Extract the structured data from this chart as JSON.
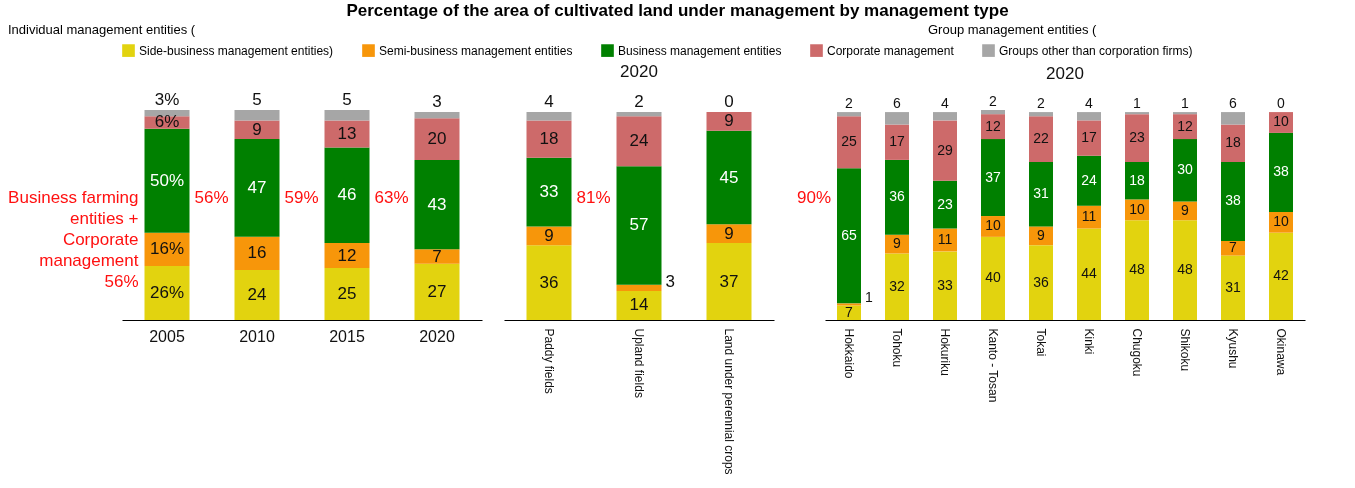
{
  "chart_data": [
    {
      "type": "bar",
      "stacked": true,
      "title": "Percentage of the area of cultivated land under management by management type",
      "legend": "top",
      "categories": [
        "2005",
        "2010",
        "2015",
        "2020"
      ],
      "series": [
        {
          "name": "Side-business management entities)",
          "color": "#e2d30f",
          "values": [
            26,
            24,
            25,
            27
          ],
          "value_labels": [
            "26%",
            "24",
            "25",
            "27"
          ]
        },
        {
          "name": "Semi-business management entities",
          "color": "#f7960a",
          "values": [
            16,
            16,
            12,
            7
          ],
          "value_labels": [
            "16%",
            "16",
            "12",
            "7"
          ]
        },
        {
          "name": "Business management entities",
          "color": "#008000",
          "values": [
            50,
            47,
            46,
            43
          ],
          "value_labels": [
            "50%",
            "47",
            "46",
            "43"
          ]
        },
        {
          "name": "Corporate management",
          "color": "#cd6a6a",
          "values": [
            6,
            9,
            13,
            20
          ],
          "value_labels": [
            "6%",
            "9",
            "13",
            "20"
          ]
        },
        {
          "name": "Groups other than corporation firms)",
          "color": "#a6a6a6",
          "values": [
            3,
            5,
            5,
            3
          ],
          "value_labels": [
            "3%",
            "5",
            "5",
            "3"
          ]
        }
      ],
      "annotations": [
        "Individual management entities (",
        "Group management entities (",
        "Business farming\nentities +\nCorporate\nmanagement\n56%",
        "56%",
        "59%",
        "63%"
      ]
    },
    {
      "type": "bar",
      "stacked": true,
      "title": "2020",
      "categories": [
        "Paddy fields",
        "Upland fields",
        "Land under perennial crops"
      ],
      "series": [
        {
          "name": "Side-business management entities)",
          "color": "#e2d30f",
          "values": [
            36,
            14,
            37
          ],
          "value_labels": [
            "36",
            "14",
            "37"
          ]
        },
        {
          "name": "Semi-business management entities",
          "color": "#f7960a",
          "values": [
            9,
            3,
            9
          ],
          "value_labels": [
            "9",
            "3",
            "9"
          ]
        },
        {
          "name": "Business management entities",
          "color": "#008000",
          "values": [
            33,
            57,
            45
          ],
          "value_labels": [
            "33",
            "57",
            "45"
          ]
        },
        {
          "name": "Corporate management",
          "color": "#cd6a6a",
          "values": [
            18,
            24,
            9
          ],
          "value_labels": [
            "18",
            "24",
            "9"
          ]
        },
        {
          "name": "Groups other than corporation firms)",
          "color": "#a6a6a6",
          "values": [
            4,
            2,
            0
          ],
          "value_labels": [
            "4",
            "2",
            "0"
          ]
        }
      ],
      "annotations": [
        "81%"
      ]
    },
    {
      "type": "bar",
      "stacked": true,
      "title": "2020",
      "categories": [
        "Hokkaido",
        "Tohoku",
        "Hokuriku",
        "Kanto - Tosan",
        "Tokai",
        "Kinki",
        "Chugoku",
        "Shikoku",
        "Kyushu",
        "Okinawa"
      ],
      "series": [
        {
          "name": "Side-business management entities)",
          "color": "#e2d30f",
          "values": [
            7,
            32,
            33,
            40,
            36,
            44,
            48,
            48,
            31,
            42
          ],
          "value_labels": [
            "7",
            "32",
            "33",
            "40",
            "36",
            "44",
            "48",
            "48",
            "31",
            "42"
          ]
        },
        {
          "name": "Semi-business management entities",
          "color": "#f7960a",
          "values": [
            1,
            9,
            11,
            10,
            9,
            11,
            10,
            9,
            7,
            10
          ],
          "value_labels": [
            "1",
            "9",
            "11",
            "10",
            "9",
            "11",
            "10",
            "9",
            "7",
            "10"
          ]
        },
        {
          "name": "Business management entities",
          "color": "#008000",
          "values": [
            65,
            36,
            23,
            37,
            31,
            24,
            18,
            30,
            38,
            38
          ],
          "value_labels": [
            "65",
            "36",
            "23",
            "37",
            "31",
            "24",
            "18",
            "30",
            "38",
            "38"
          ]
        },
        {
          "name": "Corporate management",
          "color": "#cd6a6a",
          "values": [
            25,
            17,
            29,
            12,
            22,
            17,
            23,
            12,
            18,
            10
          ],
          "value_labels": [
            "25",
            "17",
            "29",
            "12",
            "22",
            "17",
            "23",
            "12",
            "18",
            "10"
          ]
        },
        {
          "name": "Groups other than corporation firms)",
          "color": "#a6a6a6",
          "values": [
            2,
            6,
            4,
            2,
            2,
            4,
            1,
            1,
            6,
            0
          ],
          "value_labels": [
            "2",
            "6",
            "4",
            "2",
            "2",
            "4",
            "1",
            "1",
            "6",
            "0"
          ]
        }
      ],
      "annotations": [
        "90%"
      ]
    }
  ]
}
